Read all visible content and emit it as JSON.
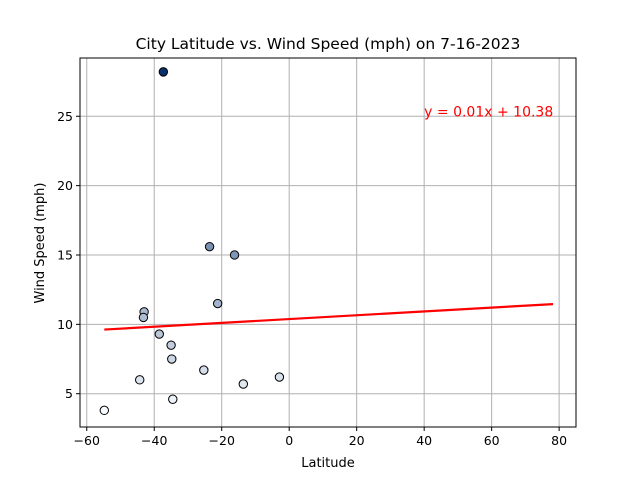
{
  "chart_data": {
    "type": "scatter",
    "title": "City Latitude vs. Wind Speed (mph) on 7-16-2023",
    "xlabel": "Latitude",
    "ylabel": "Wind Speed (mph)",
    "xlim": [
      -62,
      85
    ],
    "ylim": [
      2.6,
      29.2
    ],
    "xticks": [
      -60,
      -40,
      -20,
      0,
      20,
      40,
      60,
      80
    ],
    "yticks": [
      5,
      10,
      15,
      20,
      25
    ],
    "grid": true,
    "points": [
      {
        "x": -37.3,
        "y": 28.2
      },
      {
        "x": -23.6,
        "y": 15.6
      },
      {
        "x": -16.2,
        "y": 15.0
      },
      {
        "x": -21.2,
        "y": 11.5
      },
      {
        "x": -43.0,
        "y": 10.9
      },
      {
        "x": -43.2,
        "y": 10.5
      },
      {
        "x": -38.5,
        "y": 9.3
      },
      {
        "x": -35.0,
        "y": 8.5
      },
      {
        "x": -34.8,
        "y": 7.5
      },
      {
        "x": -25.3,
        "y": 6.7
      },
      {
        "x": -2.9,
        "y": 6.2
      },
      {
        "x": -44.3,
        "y": 6.0
      },
      {
        "x": -13.6,
        "y": 5.7
      },
      {
        "x": -34.5,
        "y": 4.6
      },
      {
        "x": -54.8,
        "y": 3.8
      }
    ],
    "regression": {
      "equation": "y = 0.01x + 10.38",
      "slope": 0.0138,
      "intercept": 10.38,
      "x_range": [
        -54.8,
        78.2
      ],
      "color": "#ff0000"
    },
    "equation_position_data": {
      "x": 40,
      "y": 25
    },
    "colors": {
      "grid": "#b0b0b0",
      "marker_edge": "#000000",
      "marker_fill_low": "#f7fbff",
      "marker_fill_high": "#08306b"
    }
  }
}
